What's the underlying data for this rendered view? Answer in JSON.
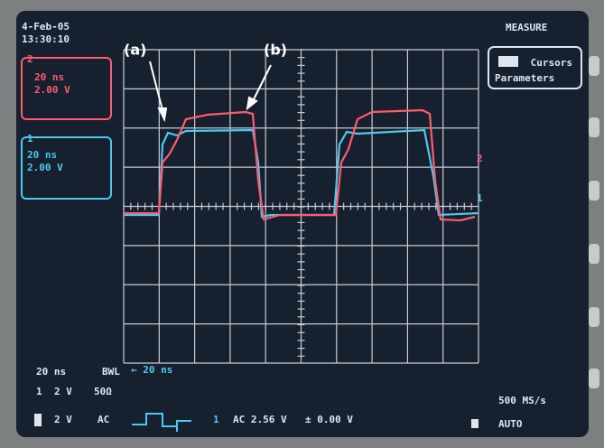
{
  "header": {
    "date": "4-Feb-05",
    "time": "13:30:10",
    "menu": "MEASURE"
  },
  "menu_button": {
    "line1": "Cursors",
    "line2": "Parameters"
  },
  "channels": [
    {
      "number": "2",
      "timebase": "20 ns",
      "scale": "2.00 V"
    },
    {
      "number": "1",
      "timebase": "20 ns",
      "scale": "2.00 V"
    }
  ],
  "annotations": [
    "(a)",
    "(b)"
  ],
  "trace_markers": [
    "2",
    "1"
  ],
  "footer": {
    "timebase": "20 ns",
    "bwl": "BWL",
    "delay": "← 20 ns",
    "row1": [
      "1",
      "2 V",
      "50Ω"
    ],
    "row2": [
      "2 V",
      "AC"
    ],
    "trigger": [
      "1",
      "AC 2.56 V",
      "± 0.00 V"
    ],
    "sample_rate": "500 MS/s",
    "mode": "AUTO"
  }
}
